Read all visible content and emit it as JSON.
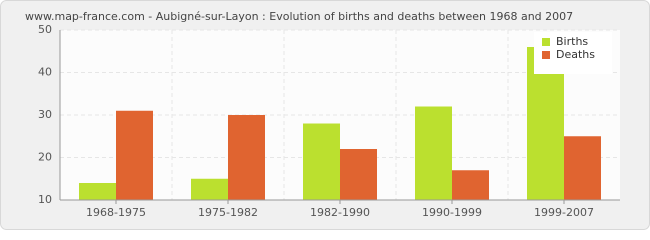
{
  "chart_data": {
    "type": "bar",
    "title": "www.map-france.com - Aubigné-sur-Layon : Evolution of births and deaths between 1968 and 2007",
    "categories": [
      "1968-1975",
      "1975-1982",
      "1982-1990",
      "1990-1999",
      "1999-2007"
    ],
    "series": [
      {
        "name": "Births",
        "color": "#bbe02f",
        "values": [
          14,
          15,
          28,
          32,
          46
        ]
      },
      {
        "name": "Deaths",
        "color": "#e06430",
        "values": [
          31,
          30,
          22,
          17,
          25
        ]
      }
    ],
    "ylim": [
      10,
      50
    ],
    "yticks": [
      10,
      20,
      30,
      40,
      50
    ],
    "grid": true,
    "legend": "upper right"
  }
}
